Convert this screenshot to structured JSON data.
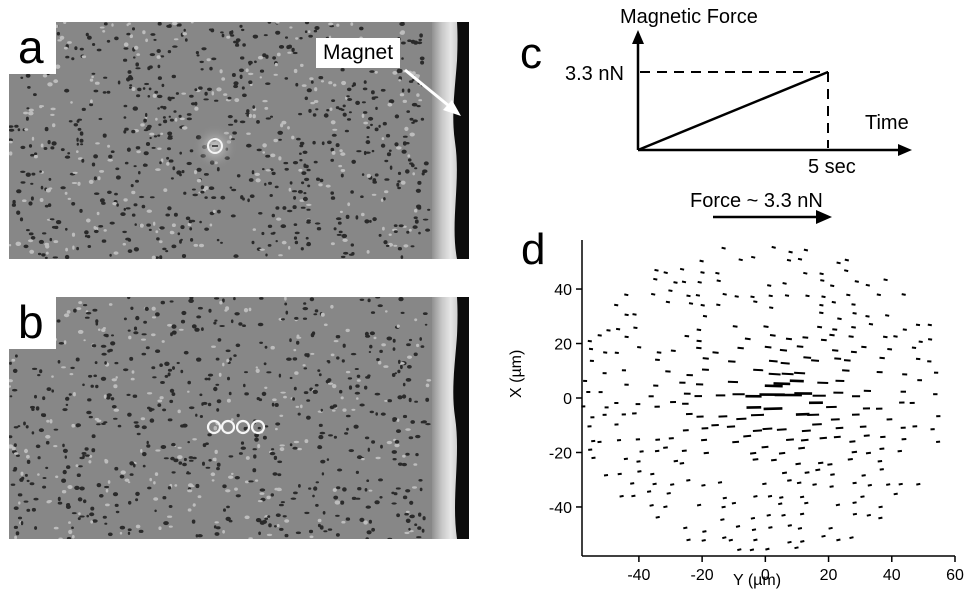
{
  "panels": {
    "a": {
      "letter": "a",
      "annotation": "Magnet"
    },
    "b": {
      "letter": "b"
    },
    "c": {
      "letter": "c",
      "y_axis_label": "Magnetic Force",
      "force_label": "3.3 nN",
      "x_axis_label": "Time",
      "time_label": "5 sec"
    },
    "d": {
      "letter": "d",
      "force_arrow_label": "Force ~ 3.3 nN"
    }
  },
  "chart_data": [
    {
      "type": "line",
      "title": "",
      "ylabel": "Magnetic Force",
      "xlabel": "Time",
      "series": [
        {
          "x": [
            "0",
            "5 sec"
          ],
          "values": [
            0,
            3.3
          ]
        }
      ],
      "annotations": [
        "3.3 nN",
        "5 sec"
      ]
    },
    {
      "type": "scatter",
      "title": "",
      "xlabel": "Y (µm)",
      "ylabel": "X (µm)",
      "xlim": [
        -58,
        60
      ],
      "ylim": [
        -58,
        58
      ],
      "xticks": [
        "-40",
        "-20",
        "0",
        "20",
        "40",
        "60"
      ],
      "yticks": [
        "40",
        "20",
        "0",
        "-20",
        "-40"
      ],
      "xtick_values": [
        -40,
        -20,
        0,
        20,
        40,
        60
      ],
      "ytick_values": [
        40,
        20,
        0,
        -20,
        -40
      ],
      "grid": false,
      "annotation": "Force ~ 3.3 nN"
    }
  ]
}
